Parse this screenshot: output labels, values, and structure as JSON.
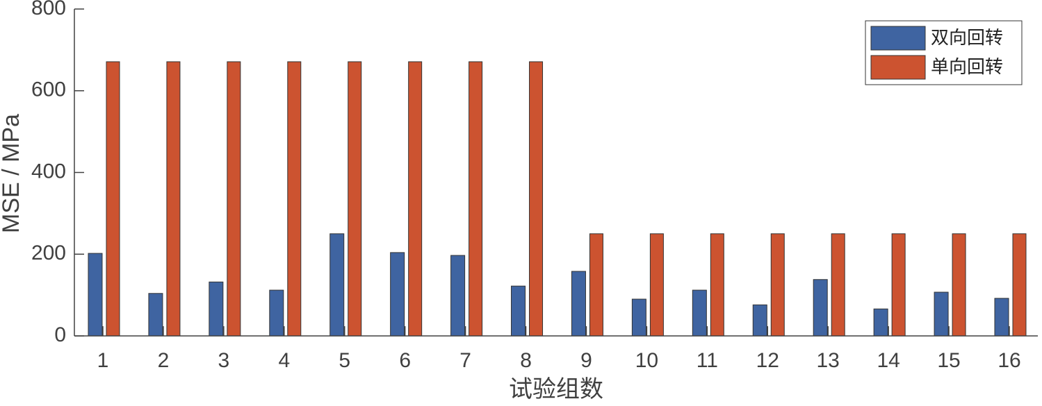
{
  "chart_data": {
    "type": "bar",
    "x_label": "试验组数",
    "y_label": "MSE / MPa",
    "categories": [
      "1",
      "2",
      "3",
      "4",
      "5",
      "6",
      "7",
      "8",
      "9",
      "10",
      "11",
      "12",
      "13",
      "14",
      "15",
      "16"
    ],
    "series": [
      {
        "name": "双向回转",
        "color": "#3f64a1",
        "values": [
          202,
          104,
          132,
          112,
          250,
          204,
          197,
          122,
          158,
          90,
          112,
          76,
          138,
          66,
          107,
          92
        ]
      },
      {
        "name": "单向回转",
        "color": "#cc5330",
        "values": [
          671,
          671,
          671,
          671,
          671,
          671,
          671,
          671,
          250,
          250,
          250,
          250,
          250,
          250,
          250,
          250
        ]
      }
    ],
    "ylim": [
      0,
      800
    ],
    "yticks": [
      0,
      200,
      400,
      600,
      800
    ],
    "grid": false,
    "legend": "upper right"
  }
}
